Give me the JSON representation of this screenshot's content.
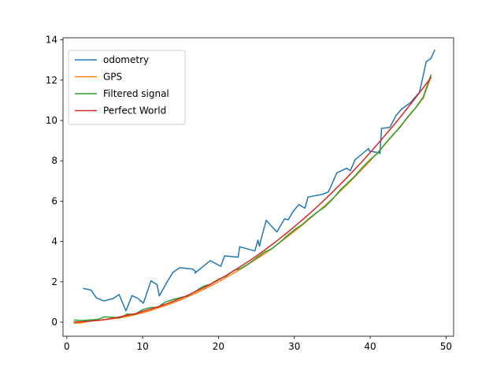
{
  "chart_data": {
    "type": "line",
    "title": "",
    "xlabel": "",
    "ylabel": "",
    "xlim": [
      -0.5,
      51
    ],
    "ylim": [
      -0.7,
      14.1
    ],
    "xticks": [
      0,
      10,
      20,
      30,
      40,
      50
    ],
    "yticks": [
      0,
      2,
      4,
      6,
      8,
      10,
      12,
      14
    ],
    "grid": false,
    "legend_position": "upper-left",
    "series": [
      {
        "name": "odometry",
        "color": "#1f77b4",
        "x": [
          2.2,
          3.2,
          3.9,
          4.9,
          6.1,
          6.9,
          7.8,
          8.6,
          9.4,
          10.1,
          11.1,
          11.9,
          12.2,
          13.1,
          14.0,
          14.9,
          16.6,
          17.0,
          16.9,
          18.9,
          20.3,
          20.8,
          22.6,
          22.8,
          24.8,
          25.2,
          25.4,
          25.6,
          26.3,
          27.7,
          28.7,
          29.2,
          29.8,
          30.6,
          31.4,
          31.8,
          33.8,
          34.5,
          35.6,
          36.9,
          37.4,
          38.0,
          39.8,
          39.9,
          40.8,
          41.3,
          41.5,
          42.6,
          43.4,
          44.1,
          45.3,
          46.5,
          47.4,
          48.0,
          48.5
        ],
        "y": [
          1.67,
          1.59,
          1.2,
          1.05,
          1.17,
          1.37,
          0.56,
          1.32,
          1.17,
          0.94,
          2.05,
          1.86,
          1.3,
          1.91,
          2.47,
          2.7,
          2.63,
          2.51,
          2.43,
          3.05,
          2.77,
          3.29,
          3.22,
          3.74,
          3.53,
          4.07,
          3.77,
          4.09,
          5.05,
          4.47,
          5.12,
          5.08,
          5.47,
          5.83,
          5.65,
          6.2,
          6.35,
          6.46,
          7.4,
          7.63,
          7.51,
          8.05,
          8.61,
          8.48,
          8.43,
          8.37,
          9.61,
          9.66,
          10.24,
          10.55,
          10.88,
          11.4,
          12.92,
          13.07,
          13.48
        ]
      },
      {
        "name": "GPS",
        "color": "#ff7f0e",
        "x": [
          1,
          2,
          3,
          4,
          5,
          6,
          7,
          8,
          9,
          10,
          11,
          12,
          13,
          14,
          15,
          16,
          17,
          18,
          19,
          20,
          21,
          22,
          23,
          24,
          25,
          26,
          27,
          28,
          29,
          30,
          31,
          32,
          33,
          34,
          35,
          36,
          37,
          38,
          39,
          40,
          41,
          42,
          43,
          44,
          45,
          46,
          47,
          48
        ],
        "y": [
          -0.05,
          -0.03,
          0.05,
          0.08,
          0.12,
          0.17,
          0.21,
          0.28,
          0.37,
          0.46,
          0.57,
          0.7,
          0.82,
          0.96,
          1.1,
          1.27,
          1.43,
          1.62,
          1.8,
          2.0,
          2.21,
          2.43,
          2.65,
          2.89,
          3.13,
          3.37,
          3.64,
          3.92,
          4.21,
          4.5,
          4.8,
          5.12,
          5.44,
          5.77,
          6.11,
          6.47,
          6.84,
          7.22,
          7.61,
          8.0,
          8.42,
          8.84,
          9.27,
          9.72,
          10.17,
          10.63,
          11.11,
          12.15
        ]
      },
      {
        "name": "Filtered signal",
        "color": "#2ca02c",
        "x": [
          1,
          2,
          3,
          4,
          5,
          6,
          7,
          8,
          9,
          10,
          11,
          12,
          13,
          14,
          15,
          16,
          17,
          18,
          19,
          20,
          21,
          22,
          23,
          24,
          25,
          26,
          27,
          28,
          29,
          30,
          31,
          32,
          33,
          34,
          35,
          36,
          37,
          38,
          39,
          40,
          41,
          42,
          43,
          44,
          45,
          46,
          47,
          48
        ],
        "y": [
          0.1,
          0.08,
          0.11,
          0.13,
          0.26,
          0.24,
          0.22,
          0.4,
          0.39,
          0.62,
          0.72,
          0.74,
          1.0,
          1.12,
          1.22,
          1.31,
          1.54,
          1.78,
          1.89,
          2.13,
          2.28,
          2.56,
          2.67,
          2.9,
          3.18,
          3.46,
          3.63,
          3.93,
          4.26,
          4.58,
          4.83,
          5.16,
          5.45,
          5.71,
          6.08,
          6.53,
          6.89,
          7.25,
          7.68,
          8.06,
          8.38,
          8.86,
          9.29,
          9.69,
          10.2,
          10.63,
          11.17,
          12.24
        ]
      },
      {
        "name": "Perfect World",
        "color": "#d62728",
        "x": [
          1,
          2,
          3,
          4,
          5,
          6,
          7,
          8,
          9,
          10,
          11,
          12,
          13,
          14,
          15,
          16,
          17,
          18,
          19,
          20,
          21,
          22,
          23,
          24,
          25,
          26,
          27,
          28,
          29,
          30,
          31,
          32,
          33,
          34,
          35,
          36,
          37,
          38,
          39,
          40,
          41,
          42,
          43,
          44,
          45,
          46,
          47,
          48
        ],
        "y": [
          0.0053,
          0.021,
          0.047,
          0.084,
          0.13,
          0.19,
          0.26,
          0.34,
          0.42,
          0.53,
          0.64,
          0.76,
          0.89,
          1.03,
          1.18,
          1.34,
          1.52,
          1.7,
          1.89,
          2.1,
          2.31,
          2.54,
          2.78,
          3.02,
          3.28,
          3.55,
          3.83,
          4.12,
          4.42,
          4.73,
          5.05,
          5.38,
          5.72,
          6.07,
          6.44,
          6.81,
          7.19,
          7.59,
          7.99,
          8.41,
          8.84,
          9.28,
          9.72,
          10.18,
          10.65,
          11.13,
          11.62,
          12.12
        ]
      }
    ]
  }
}
